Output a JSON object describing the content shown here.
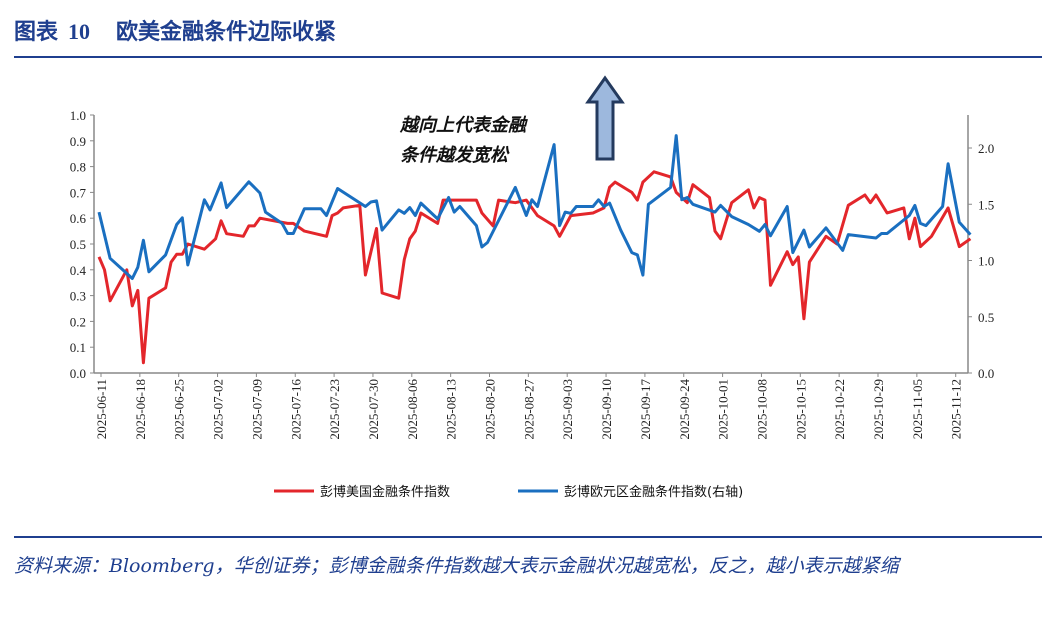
{
  "header": {
    "label": "图表",
    "number": "10",
    "title": "欧美金融条件边际收紧"
  },
  "footer": {
    "source": "资料来源：Bloomberg，华创证券；彭博金融条件指数越大表示金融状况越宽松，反之，越小表示越紧缩"
  },
  "chart_data": {
    "type": "line",
    "annotation": [
      "越向上代表金融",
      "条件越发宽松"
    ],
    "annotation_icon": "up-arrow-icon",
    "left_axis": {
      "ylim": [
        0,
        1.0
      ],
      "ticks": [
        "0.0",
        "0.1",
        "0.2",
        "0.3",
        "0.4",
        "0.5",
        "0.6",
        "0.7",
        "0.8",
        "0.9",
        "1.0"
      ]
    },
    "right_axis": {
      "ylim": [
        0,
        2.3
      ],
      "ticks": [
        "0.0",
        "0.5",
        "1.0",
        "1.5",
        "2.0"
      ]
    },
    "x_ticks": [
      "2025-06-11",
      "2025-06-18",
      "2025-06-25",
      "2025-07-02",
      "2025-07-09",
      "2025-07-16",
      "2025-07-23",
      "2025-07-30",
      "2025-08-06",
      "2025-08-13",
      "2025-08-20",
      "2025-08-27",
      "2025-09-03",
      "2025-09-10",
      "2025-09-17",
      "2025-09-24",
      "2025-10-01",
      "2025-10-08",
      "2025-10-15",
      "2025-10-22",
      "2025-10-29",
      "2025-11-05",
      "2025-11-12"
    ],
    "grid": false,
    "legend_position": "bottom",
    "series": [
      {
        "name": "彭博美国金融条件指数",
        "axis": "left",
        "color": "#e3262b",
        "points": [
          [
            "2025-06-11",
            0.45
          ],
          [
            "2025-06-12",
            0.4
          ],
          [
            "2025-06-13",
            0.28
          ],
          [
            "2025-06-16",
            0.4
          ],
          [
            "2025-06-17",
            0.26
          ],
          [
            "2025-06-18",
            0.32
          ],
          [
            "2025-06-19",
            0.04
          ],
          [
            "2025-06-20",
            0.29
          ],
          [
            "2025-06-23",
            0.33
          ],
          [
            "2025-06-24",
            0.43
          ],
          [
            "2025-06-25",
            0.46
          ],
          [
            "2025-06-26",
            0.46
          ],
          [
            "2025-06-27",
            0.5
          ],
          [
            "2025-06-30",
            0.48
          ],
          [
            "2025-07-02",
            0.52
          ],
          [
            "2025-07-03",
            0.59
          ],
          [
            "2025-07-04",
            0.54
          ],
          [
            "2025-07-07",
            0.53
          ],
          [
            "2025-07-08",
            0.57
          ],
          [
            "2025-07-09",
            0.57
          ],
          [
            "2025-07-10",
            0.6
          ],
          [
            "2025-07-15",
            0.58
          ],
          [
            "2025-07-16",
            0.58
          ],
          [
            "2025-07-18",
            0.55
          ],
          [
            "2025-07-22",
            0.53
          ],
          [
            "2025-07-23",
            0.61
          ],
          [
            "2025-07-24",
            0.62
          ],
          [
            "2025-07-25",
            0.64
          ],
          [
            "2025-07-28",
            0.65
          ],
          [
            "2025-07-29",
            0.38
          ],
          [
            "2025-07-31",
            0.56
          ],
          [
            "2025-08-01",
            0.31
          ],
          [
            "2025-08-04",
            0.29
          ],
          [
            "2025-08-05",
            0.44
          ],
          [
            "2025-08-06",
            0.52
          ],
          [
            "2025-08-07",
            0.55
          ],
          [
            "2025-08-08",
            0.62
          ],
          [
            "2025-08-11",
            0.58
          ],
          [
            "2025-08-12",
            0.67
          ],
          [
            "2025-08-18",
            0.67
          ],
          [
            "2025-08-19",
            0.62
          ],
          [
            "2025-08-21",
            0.57
          ],
          [
            "2025-08-22",
            0.67
          ],
          [
            "2025-08-25",
            0.66
          ],
          [
            "2025-08-27",
            0.67
          ],
          [
            "2025-08-29",
            0.61
          ],
          [
            "2025-09-01",
            0.57
          ],
          [
            "2025-09-02",
            0.53
          ],
          [
            "2025-09-04",
            0.61
          ],
          [
            "2025-09-08",
            0.62
          ],
          [
            "2025-09-10",
            0.64
          ],
          [
            "2025-09-11",
            0.72
          ],
          [
            "2025-09-12",
            0.74
          ],
          [
            "2025-09-15",
            0.7
          ],
          [
            "2025-09-16",
            0.67
          ],
          [
            "2025-09-17",
            0.74
          ],
          [
            "2025-09-19",
            0.78
          ],
          [
            "2025-09-22",
            0.76
          ],
          [
            "2025-09-23",
            0.7
          ],
          [
            "2025-09-25",
            0.66
          ],
          [
            "2025-09-26",
            0.73
          ],
          [
            "2025-09-29",
            0.68
          ],
          [
            "2025-09-30",
            0.55
          ],
          [
            "2025-10-01",
            0.52
          ],
          [
            "2025-10-03",
            0.66
          ],
          [
            "2025-10-06",
            0.71
          ],
          [
            "2025-10-07",
            0.64
          ],
          [
            "2025-10-08",
            0.68
          ],
          [
            "2025-10-09",
            0.67
          ],
          [
            "2025-10-10",
            0.34
          ],
          [
            "2025-10-13",
            0.47
          ],
          [
            "2025-10-14",
            0.42
          ],
          [
            "2025-10-15",
            0.45
          ],
          [
            "2025-10-16",
            0.21
          ],
          [
            "2025-10-17",
            0.43
          ],
          [
            "2025-10-20",
            0.53
          ],
          [
            "2025-10-22",
            0.5
          ],
          [
            "2025-10-24",
            0.65
          ],
          [
            "2025-10-27",
            0.69
          ],
          [
            "2025-10-28",
            0.66
          ],
          [
            "2025-10-29",
            0.69
          ],
          [
            "2025-10-31",
            0.62
          ],
          [
            "2025-11-03",
            0.64
          ],
          [
            "2025-11-04",
            0.52
          ],
          [
            "2025-11-05",
            0.6
          ],
          [
            "2025-11-06",
            0.49
          ],
          [
            "2025-11-08",
            0.53
          ],
          [
            "2025-11-11",
            0.64
          ],
          [
            "2025-11-13",
            0.49
          ],
          [
            "2025-11-15",
            0.52
          ]
        ]
      },
      {
        "name": "彭博欧元区金融条件指数(右轴)",
        "axis": "right",
        "color": "#1a6fc0",
        "points": [
          [
            "2025-06-11",
            1.43
          ],
          [
            "2025-06-13",
            1.02
          ],
          [
            "2025-06-17",
            0.84
          ],
          [
            "2025-06-18",
            0.94
          ],
          [
            "2025-06-19",
            1.18
          ],
          [
            "2025-06-20",
            0.9
          ],
          [
            "2025-06-23",
            1.05
          ],
          [
            "2025-06-25",
            1.32
          ],
          [
            "2025-06-26",
            1.38
          ],
          [
            "2025-06-27",
            0.96
          ],
          [
            "2025-06-30",
            1.54
          ],
          [
            "2025-07-01",
            1.45
          ],
          [
            "2025-07-03",
            1.69
          ],
          [
            "2025-07-04",
            1.47
          ],
          [
            "2025-07-08",
            1.7
          ],
          [
            "2025-07-10",
            1.6
          ],
          [
            "2025-07-11",
            1.43
          ],
          [
            "2025-07-14",
            1.33
          ],
          [
            "2025-07-15",
            1.24
          ],
          [
            "2025-07-16",
            1.24
          ],
          [
            "2025-07-18",
            1.46
          ],
          [
            "2025-07-21",
            1.46
          ],
          [
            "2025-07-22",
            1.4
          ],
          [
            "2025-07-24",
            1.64
          ],
          [
            "2025-07-29",
            1.48
          ],
          [
            "2025-07-30",
            1.52
          ],
          [
            "2025-07-31",
            1.53
          ],
          [
            "2025-08-01",
            1.27
          ],
          [
            "2025-08-04",
            1.45
          ],
          [
            "2025-08-05",
            1.42
          ],
          [
            "2025-08-06",
            1.47
          ],
          [
            "2025-08-07",
            1.4
          ],
          [
            "2025-08-08",
            1.51
          ],
          [
            "2025-08-11",
            1.37
          ],
          [
            "2025-08-13",
            1.56
          ],
          [
            "2025-08-14",
            1.43
          ],
          [
            "2025-08-15",
            1.48
          ],
          [
            "2025-08-18",
            1.31
          ],
          [
            "2025-08-19",
            1.12
          ],
          [
            "2025-08-20",
            1.16
          ],
          [
            "2025-08-25",
            1.65
          ],
          [
            "2025-08-27",
            1.4
          ],
          [
            "2025-08-28",
            1.54
          ],
          [
            "2025-08-29",
            1.48
          ],
          [
            "2025-09-01",
            2.03
          ],
          [
            "2025-09-02",
            1.31
          ],
          [
            "2025-09-03",
            1.43
          ],
          [
            "2025-09-04",
            1.42
          ],
          [
            "2025-09-05",
            1.48
          ],
          [
            "2025-09-08",
            1.48
          ],
          [
            "2025-09-09",
            1.54
          ],
          [
            "2025-09-10",
            1.48
          ],
          [
            "2025-09-11",
            1.51
          ],
          [
            "2025-09-13",
            1.27
          ],
          [
            "2025-09-15",
            1.07
          ],
          [
            "2025-09-16",
            1.05
          ],
          [
            "2025-09-17",
            0.87
          ],
          [
            "2025-09-18",
            1.5
          ],
          [
            "2025-09-22",
            1.65
          ],
          [
            "2025-09-23",
            2.11
          ],
          [
            "2025-09-24",
            1.54
          ],
          [
            "2025-09-25",
            1.56
          ],
          [
            "2025-09-26",
            1.5
          ],
          [
            "2025-09-30",
            1.43
          ],
          [
            "2025-10-01",
            1.49
          ],
          [
            "2025-10-03",
            1.39
          ],
          [
            "2025-10-06",
            1.32
          ],
          [
            "2025-10-08",
            1.26
          ],
          [
            "2025-10-09",
            1.32
          ],
          [
            "2025-10-10",
            1.22
          ],
          [
            "2025-10-13",
            1.48
          ],
          [
            "2025-10-14",
            1.07
          ],
          [
            "2025-10-16",
            1.27
          ],
          [
            "2025-10-17",
            1.12
          ],
          [
            "2025-10-20",
            1.29
          ],
          [
            "2025-10-23",
            1.09
          ],
          [
            "2025-10-24",
            1.23
          ],
          [
            "2025-10-29",
            1.2
          ],
          [
            "2025-10-30",
            1.24
          ],
          [
            "2025-10-31",
            1.24
          ],
          [
            "2025-11-04",
            1.4
          ],
          [
            "2025-11-05",
            1.49
          ],
          [
            "2025-11-06",
            1.33
          ],
          [
            "2025-11-07",
            1.31
          ],
          [
            "2025-11-10",
            1.48
          ],
          [
            "2025-11-11",
            1.86
          ],
          [
            "2025-11-13",
            1.34
          ],
          [
            "2025-11-15",
            1.23
          ]
        ]
      }
    ]
  }
}
